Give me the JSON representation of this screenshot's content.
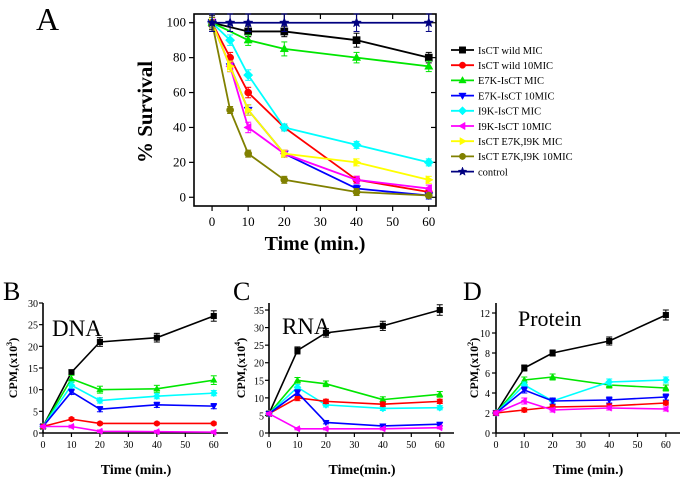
{
  "chart_data": [
    {
      "panel": "A",
      "type": "line",
      "title": "",
      "xlabel": "Time (min.)",
      "ylabel": "% Survival",
      "xlim": [
        -5,
        62
      ],
      "ylim": [
        -5,
        105
      ],
      "xticks": [
        0,
        10,
        20,
        30,
        40,
        50,
        60
      ],
      "yticks": [
        0,
        20,
        40,
        60,
        80,
        100
      ],
      "legend_position": "right",
      "series": [
        {
          "name": "IsCT wild MIC",
          "color": "#000000",
          "marker": "square",
          "x": [
            0,
            10,
            20,
            40,
            60
          ],
          "values": [
            100,
            95,
            95,
            90,
            80
          ],
          "errors": [
            4,
            3,
            3,
            4,
            3
          ]
        },
        {
          "name": "IsCT wild 10MIC",
          "color": "#ff0000",
          "marker": "circle",
          "x": [
            0,
            5,
            10,
            20,
            40,
            60
          ],
          "values": [
            100,
            80,
            60,
            40,
            10,
            3
          ],
          "errors": [
            3,
            3,
            3,
            2,
            2,
            2
          ]
        },
        {
          "name": "E7K-IsCT MIC",
          "color": "#00e600",
          "marker": "triangle-up",
          "x": [
            0,
            10,
            20,
            40,
            60
          ],
          "values": [
            100,
            90,
            85,
            80,
            75
          ],
          "errors": [
            3,
            3,
            4,
            3,
            3
          ]
        },
        {
          "name": "E7K-IsCT 10MIC",
          "color": "#0000ff",
          "marker": "triangle-down",
          "x": [
            0,
            5,
            10,
            20,
            40,
            60
          ],
          "values": [
            100,
            75,
            50,
            25,
            5,
            1
          ],
          "errors": [
            3,
            3,
            3,
            2,
            2,
            2
          ]
        },
        {
          "name": "I9K-IsCT MIC",
          "color": "#00ffff",
          "marker": "diamond",
          "x": [
            0,
            5,
            10,
            20,
            40,
            60
          ],
          "values": [
            100,
            90,
            70,
            40,
            30,
            20
          ],
          "errors": [
            3,
            3,
            3,
            2,
            2,
            2
          ]
        },
        {
          "name": "I9K-IsCT 10MIC",
          "color": "#ff00ff",
          "marker": "triangle-left",
          "x": [
            0,
            5,
            10,
            20,
            40,
            60
          ],
          "values": [
            100,
            75,
            40,
            25,
            10,
            5
          ],
          "errors": [
            3,
            3,
            3,
            2,
            2,
            2
          ]
        },
        {
          "name": "IsCT E7K,I9K MIC",
          "color": "#ffff00",
          "marker": "triangle-right",
          "x": [
            0,
            5,
            10,
            20,
            40,
            60
          ],
          "values": [
            100,
            75,
            50,
            25,
            20,
            10
          ],
          "errors": [
            3,
            3,
            3,
            2,
            2,
            2
          ]
        },
        {
          "name": "IsCT E7K,I9K 10MIC",
          "color": "#808000",
          "marker": "circle",
          "x": [
            0,
            5,
            10,
            20,
            40,
            60
          ],
          "values": [
            100,
            50,
            25,
            10,
            3,
            1
          ],
          "errors": [
            3,
            2,
            2,
            2,
            2,
            1
          ]
        },
        {
          "name": "control",
          "color": "#000080",
          "marker": "star",
          "x": [
            0,
            5,
            10,
            20,
            40,
            60
          ],
          "values": [
            100,
            100,
            100,
            100,
            100,
            100
          ],
          "errors": [
            5,
            5,
            5,
            5,
            5,
            5
          ]
        }
      ]
    },
    {
      "panel": "B",
      "type": "line",
      "title": "DNA",
      "xlabel": "Time (min.)",
      "ylabel": "CPM,(x10",
      "ylabel_sup": "3",
      "ylabel_close": ")",
      "xlim": [
        0,
        65
      ],
      "ylim": [
        0,
        30
      ],
      "xticks": [
        0,
        10,
        20,
        30,
        40,
        50,
        60
      ],
      "yticks": [
        0,
        5,
        10,
        15,
        20,
        25,
        30
      ],
      "series": [
        {
          "name": "IsCT wild MIC",
          "color": "#000000",
          "marker": "square",
          "x": [
            0,
            10,
            20,
            40,
            60
          ],
          "values": [
            1.5,
            14,
            21,
            22,
            27
          ],
          "errors": [
            0.3,
            0.6,
            1,
            1,
            1.2
          ]
        },
        {
          "name": "E7K-IsCT MIC",
          "color": "#00e600",
          "marker": "triangle-up",
          "x": [
            0,
            10,
            20,
            40,
            60
          ],
          "values": [
            1.5,
            12.5,
            10,
            10.2,
            12.2
          ],
          "errors": [
            0.3,
            0.8,
            0.8,
            0.8,
            1
          ]
        },
        {
          "name": "I9K-IsCT MIC",
          "color": "#00ffff",
          "marker": "diamond",
          "x": [
            0,
            10,
            20,
            40,
            60
          ],
          "values": [
            1.5,
            11,
            7.5,
            8.5,
            9.2
          ],
          "errors": [
            0.3,
            0.8,
            0.6,
            0.6,
            0.6
          ]
        },
        {
          "name": "E7K-IsCT 10MIC",
          "color": "#0000ff",
          "marker": "triangle-down",
          "x": [
            0,
            10,
            20,
            40,
            60
          ],
          "values": [
            1.5,
            9.5,
            5.5,
            6.5,
            6.2
          ],
          "errors": [
            0.3,
            0.6,
            0.6,
            0.6,
            0.6
          ]
        },
        {
          "name": "IsCT wild 10MIC",
          "color": "#ff0000",
          "marker": "circle",
          "x": [
            0,
            10,
            20,
            40,
            60
          ],
          "values": [
            1.5,
            3.2,
            2.2,
            2.2,
            2.2
          ],
          "errors": [
            0.2,
            0.3,
            0.3,
            0.3,
            0.3
          ]
        },
        {
          "name": "I9K-IsCT 10MIC",
          "color": "#ff00ff",
          "marker": "triangle-left",
          "x": [
            0,
            10,
            20,
            40,
            60
          ],
          "values": [
            1.5,
            1.5,
            0.4,
            0.3,
            0.2
          ],
          "errors": [
            0.2,
            0.3,
            0.3,
            0.3,
            0.3
          ]
        }
      ]
    },
    {
      "panel": "C",
      "type": "line",
      "title": "RNA",
      "xlabel": "Time(min.)",
      "ylabel": "CPM,(x10",
      "ylabel_sup": "4",
      "ylabel_close": ")",
      "xlim": [
        0,
        65
      ],
      "ylim": [
        0,
        37
      ],
      "xticks": [
        0,
        10,
        20,
        30,
        40,
        50,
        60
      ],
      "yticks": [
        0,
        5,
        10,
        15,
        20,
        25,
        30,
        35
      ],
      "series": [
        {
          "name": "IsCT wild MIC",
          "color": "#000000",
          "marker": "square",
          "x": [
            0,
            10,
            20,
            40,
            60
          ],
          "values": [
            5.5,
            23.5,
            28.5,
            30.5,
            35
          ],
          "errors": [
            0.4,
            1,
            1.2,
            1.3,
            1.5
          ]
        },
        {
          "name": "E7K-IsCT MIC",
          "color": "#00e600",
          "marker": "triangle-up",
          "x": [
            0,
            10,
            20,
            40,
            60
          ],
          "values": [
            5.5,
            15,
            14,
            9.5,
            11
          ],
          "errors": [
            0.4,
            0.8,
            0.8,
            0.8,
            0.8
          ]
        },
        {
          "name": "I9K-IsCT MIC",
          "color": "#00ffff",
          "marker": "diamond",
          "x": [
            0,
            10,
            20,
            40,
            60
          ],
          "values": [
            5.5,
            13,
            8,
            7,
            7.2
          ],
          "errors": [
            0.4,
            0.8,
            0.6,
            0.6,
            0.6
          ]
        },
        {
          "name": "IsCT wild 10MIC",
          "color": "#ff0000",
          "marker": "circle",
          "x": [
            0,
            10,
            20,
            40,
            60
          ],
          "values": [
            5.5,
            10,
            9,
            8.2,
            9
          ],
          "errors": [
            0.4,
            0.8,
            0.6,
            0.6,
            0.6
          ]
        },
        {
          "name": "E7K-IsCT 10MIC",
          "color": "#0000ff",
          "marker": "triangle-down",
          "x": [
            0,
            10,
            20,
            40,
            60
          ],
          "values": [
            5.5,
            11.5,
            3,
            2,
            2.5
          ],
          "errors": [
            0.4,
            0.8,
            0.4,
            0.4,
            0.4
          ]
        },
        {
          "name": "I9K-IsCT 10MIC",
          "color": "#ff00ff",
          "marker": "triangle-left",
          "x": [
            0,
            10,
            20,
            40,
            60
          ],
          "values": [
            5.5,
            1.2,
            1.2,
            1.2,
            1.5
          ],
          "errors": [
            0.3,
            0.3,
            0.3,
            0.3,
            0.3
          ]
        }
      ]
    },
    {
      "panel": "D",
      "type": "line",
      "title": "Protein",
      "xlabel": "Time (min.)",
      "ylabel": "CPM,(x10",
      "ylabel_sup": "2",
      "ylabel_close": ")",
      "xlim": [
        0,
        65
      ],
      "ylim": [
        0,
        13
      ],
      "xticks": [
        0,
        10,
        20,
        30,
        40,
        50,
        60
      ],
      "yticks": [
        0,
        2,
        4,
        6,
        8,
        10,
        12
      ],
      "series": [
        {
          "name": "IsCT wild MIC",
          "color": "#000000",
          "marker": "square",
          "x": [
            0,
            10,
            20,
            40,
            60
          ],
          "values": [
            2,
            6.5,
            8,
            9.2,
            11.8
          ],
          "errors": [
            0.2,
            0.3,
            0.3,
            0.4,
            0.5
          ]
        },
        {
          "name": "E7K-IsCT MIC",
          "color": "#00e600",
          "marker": "triangle-up",
          "x": [
            0,
            10,
            20,
            40,
            60
          ],
          "values": [
            2,
            5.3,
            5.6,
            4.8,
            4.5
          ],
          "errors": [
            0.2,
            0.3,
            0.3,
            0.3,
            0.3
          ]
        },
        {
          "name": "I9K-IsCT MIC",
          "color": "#00ffff",
          "marker": "diamond",
          "x": [
            0,
            10,
            20,
            40,
            60
          ],
          "values": [
            2,
            4.8,
            3.2,
            5.1,
            5.3
          ],
          "errors": [
            0.2,
            0.3,
            0.3,
            0.3,
            0.3
          ]
        },
        {
          "name": "E7K-IsCT 10MIC",
          "color": "#0000ff",
          "marker": "triangle-down",
          "x": [
            0,
            10,
            20,
            40,
            60
          ],
          "values": [
            2,
            4.3,
            3.2,
            3.3,
            3.6
          ],
          "errors": [
            0.2,
            0.3,
            0.3,
            0.3,
            0.3
          ]
        },
        {
          "name": "IsCT wild 10MIC",
          "color": "#ff0000",
          "marker": "circle",
          "x": [
            0,
            10,
            20,
            40,
            60
          ],
          "values": [
            2,
            2.3,
            2.6,
            2.7,
            3
          ],
          "errors": [
            0.2,
            0.2,
            0.2,
            0.2,
            0.2
          ]
        },
        {
          "name": "I9K-IsCT 10MIC",
          "color": "#ff00ff",
          "marker": "triangle-left",
          "x": [
            0,
            10,
            20,
            40,
            60
          ],
          "values": [
            2,
            3.2,
            2.3,
            2.5,
            2.4
          ],
          "errors": [
            0.2,
            0.3,
            0.2,
            0.2,
            0.2
          ]
        }
      ]
    }
  ]
}
